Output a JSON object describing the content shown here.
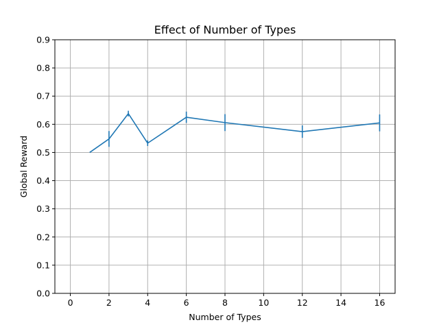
{
  "chart_data": {
    "type": "line",
    "title": "Effect of Number of Types",
    "xlabel": "Number of Types",
    "ylabel": "Global Reward",
    "xlim": [
      -0.8,
      16.8
    ],
    "ylim": [
      0,
      0.9
    ],
    "xticks": [
      0,
      2,
      4,
      6,
      8,
      10,
      12,
      14,
      16
    ],
    "yticks": [
      0.0,
      0.1,
      0.2,
      0.3,
      0.4,
      0.5,
      0.6,
      0.7,
      0.8,
      0.9
    ],
    "xtick_labels": [
      "0",
      "2",
      "4",
      "6",
      "8",
      "10",
      "12",
      "14",
      "16"
    ],
    "ytick_labels": [
      "0.0",
      "0.1",
      "0.2",
      "0.3",
      "0.4",
      "0.5",
      "0.6",
      "0.7",
      "0.8",
      "0.9"
    ],
    "grid": true,
    "series": [
      {
        "x": [
          1,
          2,
          3,
          4,
          6,
          8,
          12,
          16
        ],
        "y": [
          0.5,
          0.548,
          0.638,
          0.533,
          0.625,
          0.606,
          0.574,
          0.605
        ],
        "yerr": [
          0.0,
          0.028,
          0.01,
          0.01,
          0.02,
          0.03,
          0.022,
          0.03
        ],
        "color": "#1f77b4"
      }
    ]
  }
}
